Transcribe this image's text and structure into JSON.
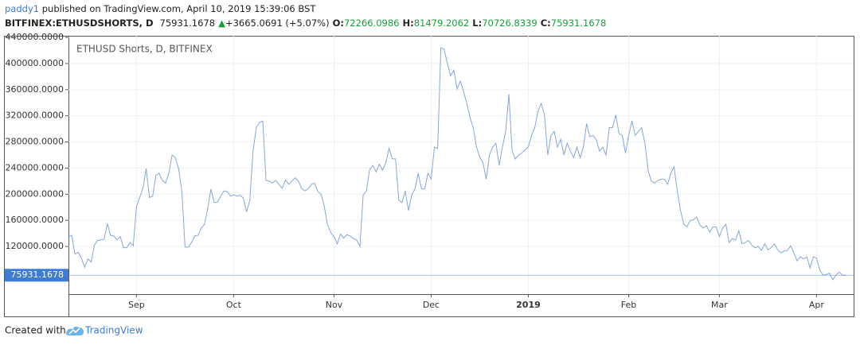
{
  "header": {
    "author": "paddy1",
    "published": "published on TradingView.com, April 10, 2019 15:39:06 BST",
    "symbol": "BITFINEX:ETHUSDSHORTS, D",
    "last": "75931.1678",
    "arrow": "▲",
    "change": "+3665.0691 (+5.07%)",
    "open_label": "O:",
    "open": "72266.0986",
    "high_label": "H:",
    "high": "81479.2062",
    "low_label": "L:",
    "low": "70726.8339",
    "close_label": "C:",
    "close": "75931.1678"
  },
  "footer": {
    "created": "Created with",
    "brand": "TradingView"
  },
  "chart_data": {
    "type": "line",
    "grid": true,
    "last_price_color": "#3d7bd4",
    "ylim": [
      47000,
      442500
    ],
    "yticks": [
      {
        "value": 120000,
        "label": "120000.0000"
      },
      {
        "value": 160000,
        "label": "160000.0000"
      },
      {
        "value": 200000,
        "label": "200000.0000"
      },
      {
        "value": 240000,
        "label": "240000.0000"
      },
      {
        "value": 280000,
        "label": "280000.0000"
      },
      {
        "value": 320000,
        "label": "320000.0000"
      },
      {
        "value": 360000,
        "label": "360000.0000"
      },
      {
        "value": 400000,
        "label": "400000.0000"
      },
      {
        "value": 440000,
        "label": "440000.0000"
      }
    ],
    "categories": [
      null,
      null,
      null,
      null,
      null,
      null,
      null,
      null,
      null,
      null,
      null,
      null,
      null,
      null,
      null,
      null,
      null,
      null,
      null,
      null,
      null,
      "Sep",
      null,
      null,
      null,
      null,
      null,
      null,
      null,
      null,
      null,
      null,
      null,
      null,
      null,
      null,
      null,
      null,
      null,
      null,
      null,
      null,
      null,
      null,
      null,
      null,
      null,
      null,
      null,
      null,
      null,
      "Oct",
      null,
      null,
      null,
      null,
      null,
      null,
      null,
      null,
      null,
      null,
      null,
      null,
      null,
      null,
      null,
      null,
      null,
      null,
      null,
      null,
      null,
      null,
      null,
      null,
      null,
      null,
      null,
      null,
      null,
      null,
      "Nov",
      null,
      null,
      null,
      null,
      null,
      null,
      null,
      null,
      null,
      null,
      null,
      null,
      null,
      null,
      null,
      null,
      null,
      null,
      null,
      null,
      null,
      null,
      null,
      null,
      null,
      null,
      null,
      null,
      null,
      "Dec",
      null,
      null,
      null,
      null,
      null,
      null,
      null,
      null,
      null,
      null,
      null,
      null,
      null,
      null,
      null,
      null,
      null,
      null,
      null,
      null,
      null,
      null,
      null,
      null,
      null,
      null,
      null,
      null,
      null,
      "2019",
      null,
      null,
      null,
      null,
      null,
      null,
      null,
      null,
      null,
      null,
      null,
      null,
      null,
      null,
      null,
      null,
      null,
      null,
      null,
      null,
      null,
      null,
      null,
      null,
      null,
      null,
      null,
      null,
      null,
      null,
      "Feb",
      null,
      null,
      null,
      null,
      null,
      null,
      null,
      null,
      null,
      null,
      null,
      null,
      null,
      null,
      null,
      null,
      null,
      null,
      null,
      null,
      null,
      null,
      null,
      null,
      null,
      null,
      null,
      "Mar",
      null,
      null,
      null,
      null,
      null,
      null,
      null,
      null,
      null,
      null,
      null,
      null,
      null,
      null,
      null,
      null,
      null,
      null,
      null,
      null,
      null,
      null,
      null,
      null,
      null,
      null,
      null,
      null,
      null,
      "Apr",
      null,
      null,
      null,
      null,
      null,
      null,
      null,
      null,
      null
    ],
    "series": [
      {
        "name": "ETHUSD Shorts, D, BITFINEX",
        "color": "#86a6da",
        "values": [
          135000,
          137000,
          108000,
          111000,
          102000,
          88000,
          101000,
          96000,
          122000,
          129000,
          130000,
          131000,
          155000,
          137000,
          136000,
          130000,
          135000,
          118000,
          118000,
          126000,
          121000,
          181000,
          195000,
          209000,
          239000,
          195000,
          197000,
          229000,
          232000,
          221000,
          217000,
          232000,
          260000,
          256000,
          239000,
          205000,
          119000,
          119000,
          126000,
          136000,
          137000,
          148000,
          154000,
          178000,
          208000,
          187000,
          188000,
          197000,
          205000,
          204000,
          197000,
          199000,
          197000,
          198000,
          194000,
          173000,
          191000,
          266000,
          302000,
          310000,
          312000,
          221000,
          220000,
          217000,
          221000,
          215000,
          209000,
          222000,
          215000,
          220000,
          225000,
          220000,
          209000,
          205000,
          208000,
          215000,
          217000,
          204000,
          200000,
          181000,
          153000,
          141000,
          135000,
          124000,
          139000,
          133000,
          138000,
          136000,
          132000,
          130000,
          120000,
          199000,
          205000,
          238000,
          244000,
          234000,
          246000,
          237000,
          248000,
          270000,
          254000,
          254000,
          191000,
          187000,
          205000,
          175000,
          199000,
          208000,
          232000,
          208000,
          208000,
          232000,
          223000,
          272000,
          270000,
          424000,
          422000,
          400000,
          381000,
          390000,
          361000,
          373000,
          357000,
          339000,
          317000,
          302000,
          272000,
          257000,
          248000,
          223000,
          260000,
          272000,
          278000,
          244000,
          272000,
          296000,
          353000,
          266000,
          254000,
          260000,
          263000,
          268000,
          272000,
          290000,
          302000,
          327000,
          339000,
          321000,
          260000,
          290000,
          296000,
          272000,
          284000,
          260000,
          278000,
          266000,
          256000,
          272000,
          256000,
          272000,
          308000,
          288000,
          290000,
          283000,
          266000,
          272000,
          260000,
          302000,
          302000,
          321000,
          293000,
          290000,
          263000,
          290000,
          312000,
          290000,
          296000,
          302000,
          278000,
          236000,
          220000,
          217000,
          221000,
          223000,
          223000,
          215000,
          232000,
          242000,
          205000,
          175000,
          154000,
          150000,
          160000,
          161000,
          165000,
          153000,
          148000,
          152000,
          142000,
          150000,
          150000,
          135000,
          148000,
          154000,
          126000,
          132000,
          130000,
          144000,
          124000,
          126000,
          129000,
          122000,
          118000,
          120000,
          114000,
          124000,
          115000,
          118000,
          124000,
          115000,
          110000,
          113000,
          114000,
          121000,
          110000,
          98000,
          104000,
          101000,
          104000,
          87000,
          104000,
          102000,
          84000,
          76000,
          77000,
          79000,
          69000,
          76000,
          81000,
          76000,
          75931.1678
        ]
      }
    ]
  }
}
